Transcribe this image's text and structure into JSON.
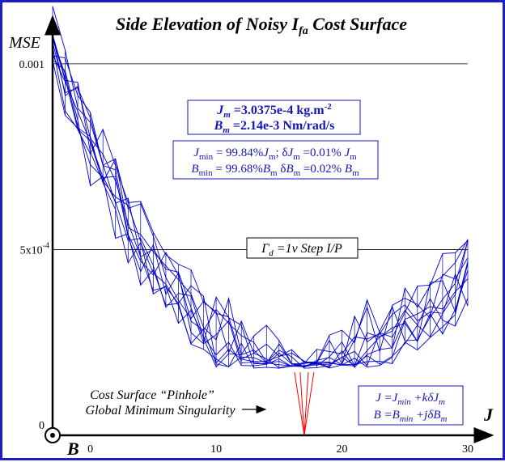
{
  "chart_data": {
    "type": "line",
    "title_prefix": "Side Elevation of Noisy ",
    "title_var": "I",
    "title_sub": "fa",
    "title_suffix": " Cost Surface",
    "ylabel": "MSE",
    "xlabel": "J",
    "depth_axis_label": "B",
    "ylim": [
      0,
      0.0011
    ],
    "xlim": [
      -3,
      30
    ],
    "x_ticks": [
      {
        "value": 0,
        "label": "0"
      },
      {
        "value": 10,
        "label": "10"
      },
      {
        "value": 20,
        "label": "20"
      },
      {
        "value": 30,
        "label": "30"
      }
    ],
    "y_ticks": [
      {
        "value": 0,
        "label": "0"
      },
      {
        "value": 0.0005,
        "label": "5x10",
        "exp": "-4"
      },
      {
        "value": 0.001,
        "label": "0.001"
      }
    ],
    "gridlines_y": [
      0.0005,
      0.001
    ],
    "grid": "horizontal at labeled ticks",
    "series_color": "#0000cc",
    "singularity_color": "#ff0000",
    "surface": {
      "x_start": -3,
      "x_end": 30,
      "x_step": 1,
      "num_traces": 11,
      "minimum_x": 17,
      "minimum_mse": 0.00019,
      "edge_mse_left": 0.00105,
      "edge_mse_right": 0.00045,
      "noise_amplitude": 8e-05
    },
    "singularity": {
      "x": 17,
      "top_mse": 0.00017,
      "bottom_mse": 0.0
    }
  },
  "info_box_1": {
    "line1_var": "J",
    "line1_sub": "m",
    "line1_text": " =3.0375e-4 kg.m",
    "line1_sup": "-2",
    "line2_var": "B",
    "line2_sub": "m",
    "line2_text": " =2.14e-3 Nm/rad/s"
  },
  "info_box_2": {
    "line1": [
      {
        "t": "J",
        "i": true
      },
      {
        "t": "min",
        "sub": true
      },
      {
        "t": " = 99.84%"
      },
      {
        "t": "J",
        "i": true
      },
      {
        "t": "m",
        "sub": true
      },
      {
        "t": "; δ"
      },
      {
        "t": "J",
        "i": true
      },
      {
        "t": "m",
        "sub": true
      },
      {
        "t": " =0.01% "
      },
      {
        "t": "J",
        "i": true
      },
      {
        "t": "m",
        "sub": true
      }
    ],
    "line2": [
      {
        "t": "B",
        "i": true
      },
      {
        "t": "min",
        "sub": true
      },
      {
        "t": " = 99.68%"
      },
      {
        "t": "B",
        "i": true
      },
      {
        "t": "m",
        "sub": true
      },
      {
        "t": " δ"
      },
      {
        "t": "B",
        "i": true
      },
      {
        "t": "m",
        "sub": true
      },
      {
        "t": " =0.02% "
      },
      {
        "t": "B",
        "i": true
      },
      {
        "t": "m",
        "sub": true
      }
    ]
  },
  "info_box_3": {
    "runs": [
      {
        "t": "Γ",
        "i": true
      },
      {
        "t": "d",
        "sub": true,
        "i": true
      },
      {
        "t": " =1v Step I/P",
        "i": true
      }
    ]
  },
  "info_box_4": {
    "line1": [
      {
        "t": "J",
        "i": true
      },
      {
        "t": " =",
        "i": true
      },
      {
        "t": "J",
        "i": true
      },
      {
        "t": "min",
        "sub": true,
        "i": true
      },
      {
        "t": " +",
        "i": true
      },
      {
        "t": "k",
        "i": true
      },
      {
        "t": "δ",
        "i": true
      },
      {
        "t": "J",
        "i": true
      },
      {
        "t": "m",
        "sub": true,
        "i": true
      }
    ],
    "line2": [
      {
        "t": "B",
        "i": true
      },
      {
        "t": " =",
        "i": true
      },
      {
        "t": "B",
        "i": true
      },
      {
        "t": "min",
        "sub": true,
        "i": true
      },
      {
        "t": " +",
        "i": true
      },
      {
        "t": "j",
        "i": true
      },
      {
        "t": "δ",
        "i": true
      },
      {
        "t": "B",
        "i": true
      },
      {
        "t": "m",
        "sub": true,
        "i": true
      }
    ]
  },
  "annotation": {
    "line1": "Cost Surface “Pinhole”",
    "line2": "Global Minimum Singularity"
  }
}
